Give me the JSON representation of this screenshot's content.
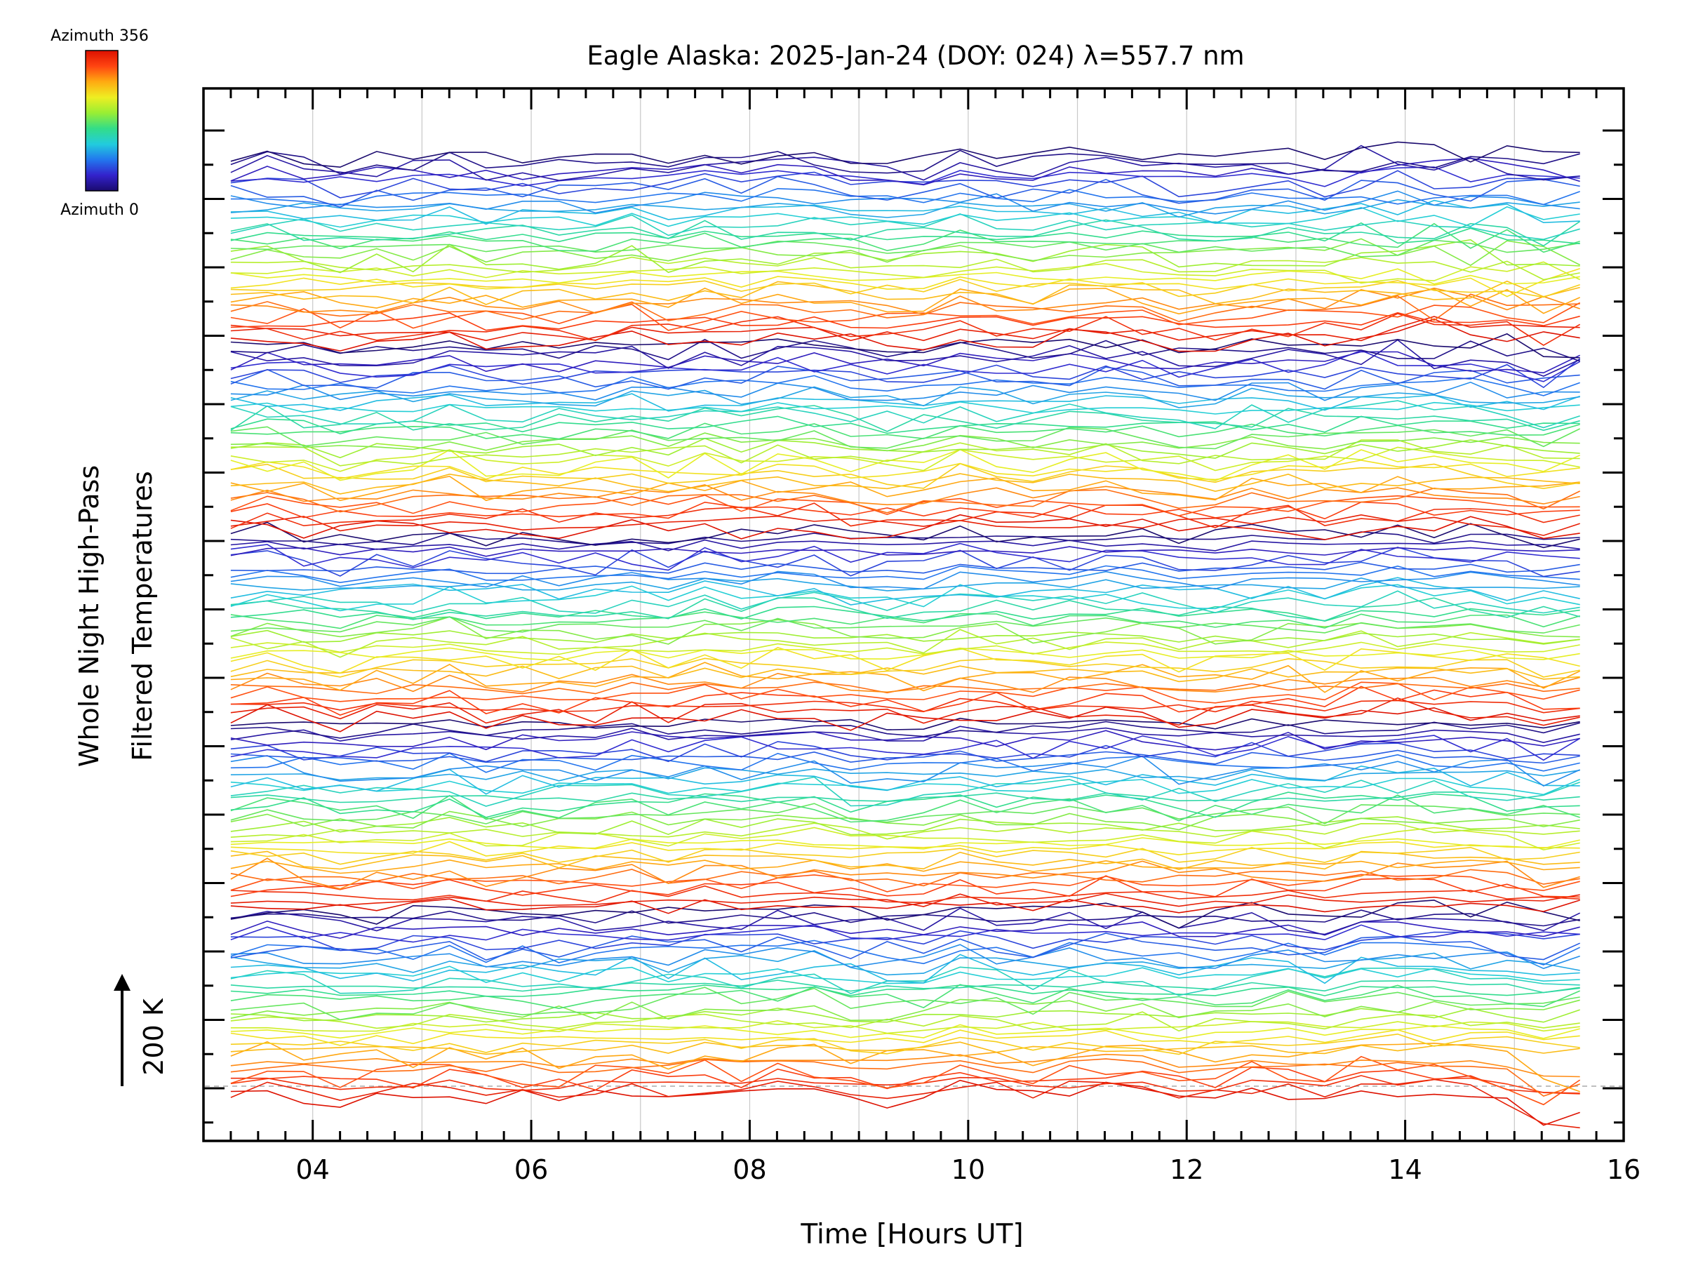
{
  "colorbar": {
    "top_label": "Azimuth 356",
    "bottom_label": "Azimuth 0",
    "gradient": [
      "#1a0a6e",
      "#3322cc",
      "#2277ee",
      "#22ccdd",
      "#33dd88",
      "#99ee33",
      "#eeee22",
      "#ffaa11",
      "#ff4411",
      "#dd1100"
    ]
  },
  "colors": {
    "frame": "#000000",
    "grid": "#c8c8c8",
    "baseline": "#999999"
  },
  "chart_data": {
    "type": "line",
    "title": "Eagle Alaska: 2025-Jan-24 (DOY: 024) λ=557.7 nm",
    "xlabel": "Time [Hours UT]",
    "ylabel_lines": [
      "Whole Night High-Pass",
      "Filtered Temperatures"
    ],
    "scale_label": "200 K",
    "xlim": [
      3.0,
      16.0
    ],
    "xticks": [
      4,
      6,
      8,
      10,
      12,
      14,
      16
    ],
    "xtick_labels": [
      "04",
      "06",
      "08",
      "10",
      "12",
      "14",
      "16"
    ],
    "grid": "vertical dashed every 2 hours",
    "legend": "none (azimuth colorbar at top-left)",
    "time_start": 3.25,
    "time_end": 15.6,
    "n_samples": 38,
    "n_series": 165,
    "y_axis": "stacked offsets, unlabeled; each trace colored by azimuth (0 to 356)"
  }
}
